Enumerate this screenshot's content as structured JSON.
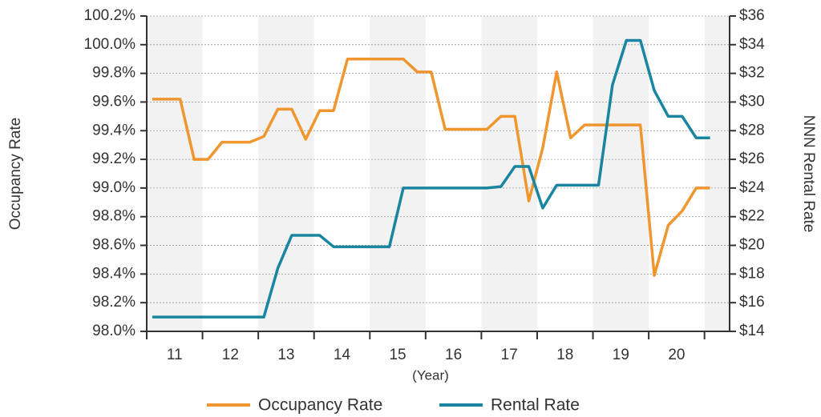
{
  "chart_data": {
    "type": "line",
    "ylabel": "Occupancy Rate",
    "y2label": "NNN Rental Rate",
    "xlabel": "(Year)",
    "x": [
      10.6,
      10.85,
      11.1,
      11.35,
      11.6,
      11.85,
      12.1,
      12.35,
      12.6,
      12.85,
      13.1,
      13.35,
      13.6,
      13.85,
      14.1,
      14.35,
      14.6,
      14.85,
      15.1,
      15.35,
      15.6,
      15.85,
      16.1,
      16.35,
      16.6,
      16.85,
      17.1,
      17.35,
      17.6,
      17.85,
      18.1,
      18.35,
      18.6,
      18.85,
      19.1,
      19.35,
      19.6,
      19.85,
      20.1,
      20.35,
      20.6
    ],
    "xlim": [
      10.5,
      20.95
    ],
    "xticks": [
      11,
      12,
      13,
      14,
      15,
      16,
      17,
      18,
      19,
      20
    ],
    "ylim": [
      98,
      100.2
    ],
    "yticks": [
      {
        "value": 98,
        "label": "98.0%"
      },
      {
        "value": 98.2,
        "label": "98.2%"
      },
      {
        "value": 98.4,
        "label": "98.4%"
      },
      {
        "value": 98.6,
        "label": "98.6%"
      },
      {
        "value": 98.8,
        "label": "98.8%"
      },
      {
        "value": 99,
        "label": "99.0%"
      },
      {
        "value": 99.2,
        "label": "99.2%"
      },
      {
        "value": 99.4,
        "label": "99.4%"
      },
      {
        "value": 99.6,
        "label": "99.6%"
      },
      {
        "value": 99.8,
        "label": "99.8%"
      },
      {
        "value": 100,
        "label": "100.0%"
      },
      {
        "value": 100.2,
        "label": "100.2%"
      }
    ],
    "y2lim": [
      14,
      36
    ],
    "y2ticks": [
      {
        "value": 14,
        "label": "$14"
      },
      {
        "value": 16,
        "label": "$16"
      },
      {
        "value": 18,
        "label": "$18"
      },
      {
        "value": 20,
        "label": "$20"
      },
      {
        "value": 22,
        "label": "$22"
      },
      {
        "value": 24,
        "label": "$24"
      },
      {
        "value": 26,
        "label": "$26"
      },
      {
        "value": 28,
        "label": "$28"
      },
      {
        "value": 30,
        "label": "$30"
      },
      {
        "value": 32,
        "label": "$32"
      },
      {
        "value": 34,
        "label": "$34"
      },
      {
        "value": 36,
        "label": "$36"
      }
    ],
    "grid": true,
    "series": [
      {
        "name": "Occupancy Rate",
        "color": "#f0962e",
        "values": [
          99.62,
          99.62,
          99.62,
          99.2,
          99.2,
          99.32,
          99.32,
          99.32,
          99.36,
          99.55,
          99.55,
          99.34,
          99.54,
          99.54,
          99.9,
          99.9,
          99.9,
          99.9,
          99.9,
          99.81,
          99.81,
          99.41,
          99.41,
          99.41,
          99.41,
          99.5,
          99.5,
          98.91,
          99.28,
          99.81,
          99.35,
          99.44,
          99.44,
          99.44,
          99.44,
          99.44,
          98.39,
          98.74,
          98.84,
          99.0,
          99.0
        ]
      },
      {
        "name": "Rental Rate",
        "color": "#1a85a0",
        "axis": "y2",
        "values": [
          15,
          15,
          15,
          15,
          15,
          15,
          15,
          15,
          15,
          18.4,
          20.7,
          20.7,
          20.7,
          19.9,
          19.9,
          19.9,
          19.9,
          19.9,
          24,
          24,
          24,
          24,
          24,
          24,
          24,
          24.1,
          25.5,
          25.5,
          22.6,
          24.2,
          24.2,
          24.2,
          24.2,
          31.2,
          34.3,
          34.3,
          30.8,
          29,
          29,
          27.5,
          27.5
        ]
      }
    ]
  }
}
